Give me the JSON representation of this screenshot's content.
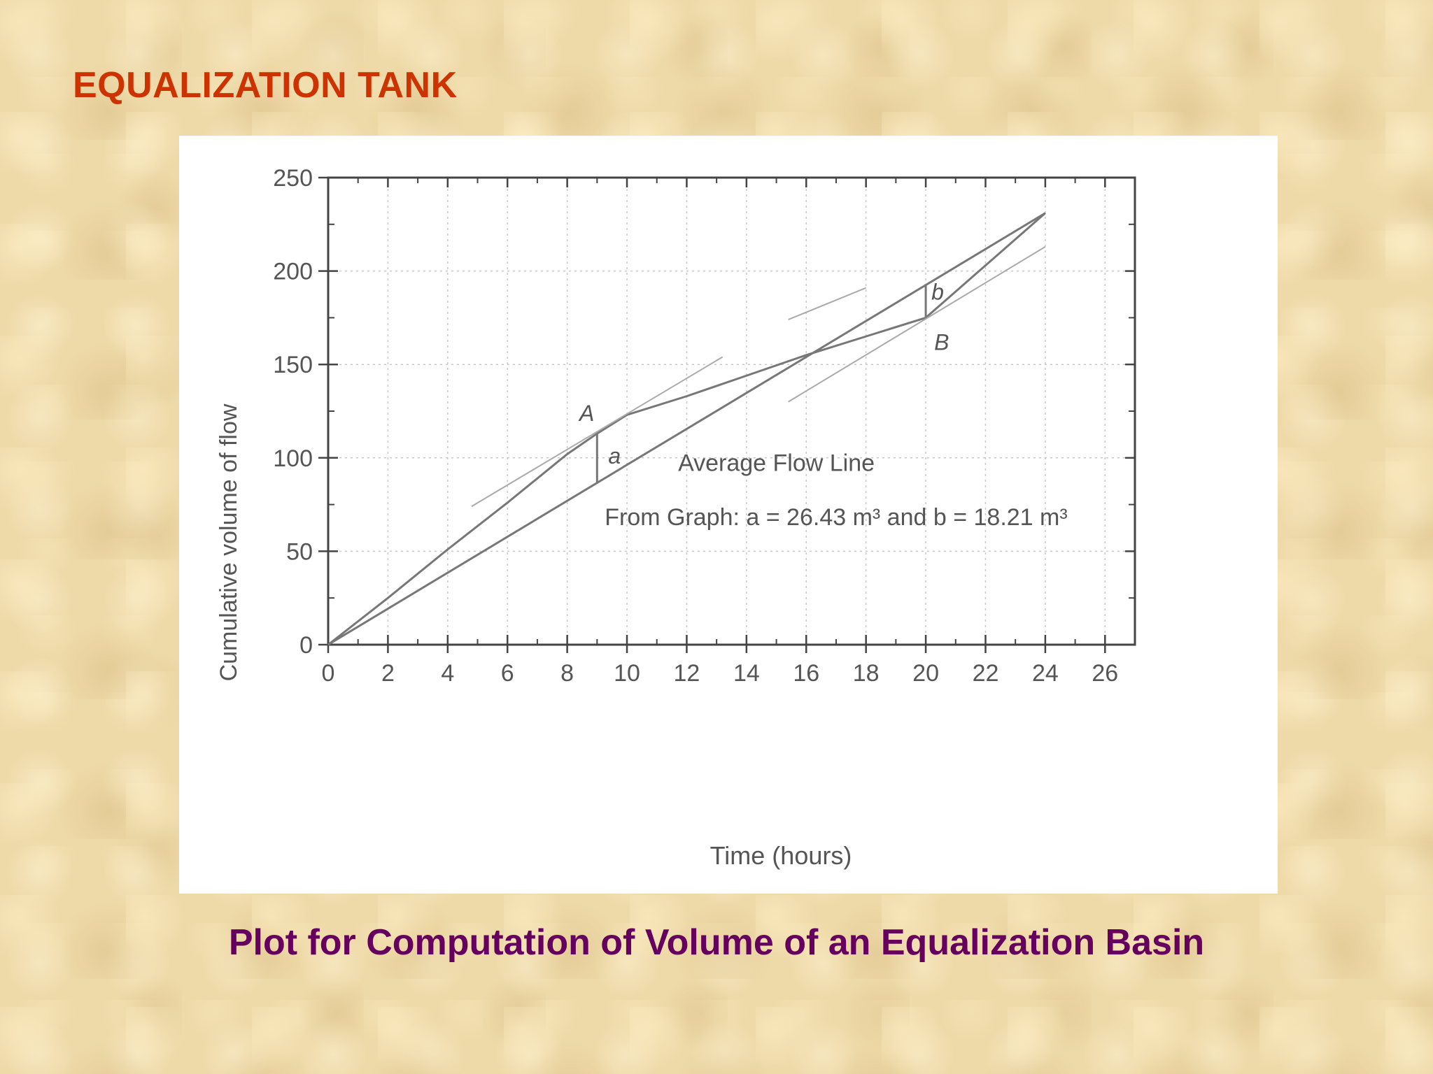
{
  "slide": {
    "title": "EQUALIZATION TANK",
    "caption": "Plot for Computation of Volume of an Equalization Basin"
  },
  "colors": {
    "title": "#cc3300",
    "caption": "#66005e",
    "plot_line": "#777777",
    "grid": "#c8c8c8"
  },
  "chart_data": {
    "type": "line",
    "xlabel": "Time (hours)",
    "ylabel": "Cumulative volume of flow",
    "xlim": [
      0,
      27
    ],
    "ylim": [
      0,
      250
    ],
    "xticks": [
      0,
      2,
      4,
      6,
      8,
      10,
      12,
      14,
      16,
      18,
      20,
      22,
      24,
      26
    ],
    "yticks": [
      0,
      50,
      100,
      150,
      200,
      250
    ],
    "grid": true,
    "series": [
      {
        "role": "cumulative-flow",
        "points": [
          [
            0,
            0
          ],
          [
            2,
            25
          ],
          [
            4,
            51
          ],
          [
            6,
            76
          ],
          [
            8,
            102
          ],
          [
            9,
            113
          ],
          [
            10,
            123
          ],
          [
            12,
            133
          ],
          [
            14,
            144
          ],
          [
            16,
            155
          ],
          [
            18,
            165
          ],
          [
            20,
            175
          ],
          [
            22,
            203
          ],
          [
            24,
            231
          ]
        ]
      },
      {
        "name": "Average Flow Line",
        "role": "average-flow",
        "points": [
          [
            0,
            0
          ],
          [
            24,
            231
          ]
        ]
      },
      {
        "role": "tangent-a",
        "points": [
          [
            4.8,
            74
          ],
          [
            13.2,
            154
          ]
        ]
      },
      {
        "role": "tangent-b",
        "points": [
          [
            15.4,
            130
          ],
          [
            24,
            213
          ]
        ]
      },
      {
        "role": "tangent-c",
        "points": [
          [
            15.4,
            174
          ],
          [
            18,
            191
          ]
        ]
      }
    ],
    "markers": [
      {
        "label": "a",
        "x": 9,
        "y_from": 87,
        "y_to": 113
      },
      {
        "label": "b",
        "x": 20,
        "y_from": 175,
        "y_to": 193
      }
    ],
    "annotations": [
      {
        "text": "A",
        "x": 9,
        "y": 113
      },
      {
        "text": "a",
        "x": 9,
        "y": 100
      },
      {
        "text": "b",
        "x": 20,
        "y": 184
      },
      {
        "text": "B",
        "x": 20,
        "y": 175
      },
      {
        "text": "Average  Flow  Line",
        "x": 15,
        "y": 93
      },
      {
        "text": "From  Graph:  a  =  26.43  m³  and  b  =  18.21  m³",
        "x": 17,
        "y": 64
      }
    ]
  }
}
